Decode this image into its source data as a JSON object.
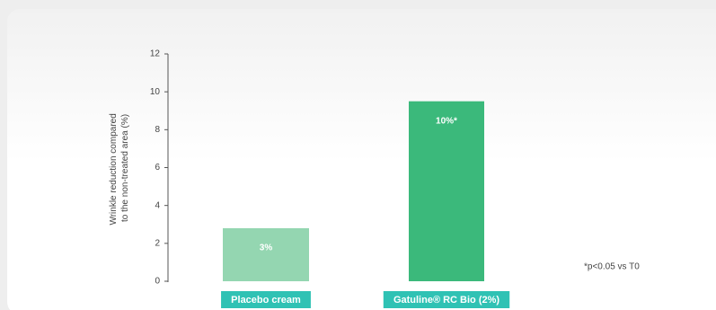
{
  "chart_data": {
    "type": "bar",
    "ylabel": [
      "Wrinkle reduction compared",
      "to the non-treated area (%)"
    ],
    "categories": [
      "Placebo cream",
      "Gatuline® RC Bio (2%)"
    ],
    "values": [
      2.8,
      9.5
    ],
    "value_labels": [
      "3%",
      "10%*"
    ],
    "colors": [
      "#94d6b1",
      "#3bb97b"
    ],
    "label_color": "#2fc2b4",
    "ylim": [
      0,
      12
    ],
    "yticks": [
      0,
      2,
      4,
      6,
      8,
      10,
      12
    ],
    "annotation": "*p<0.05 vs T0"
  }
}
